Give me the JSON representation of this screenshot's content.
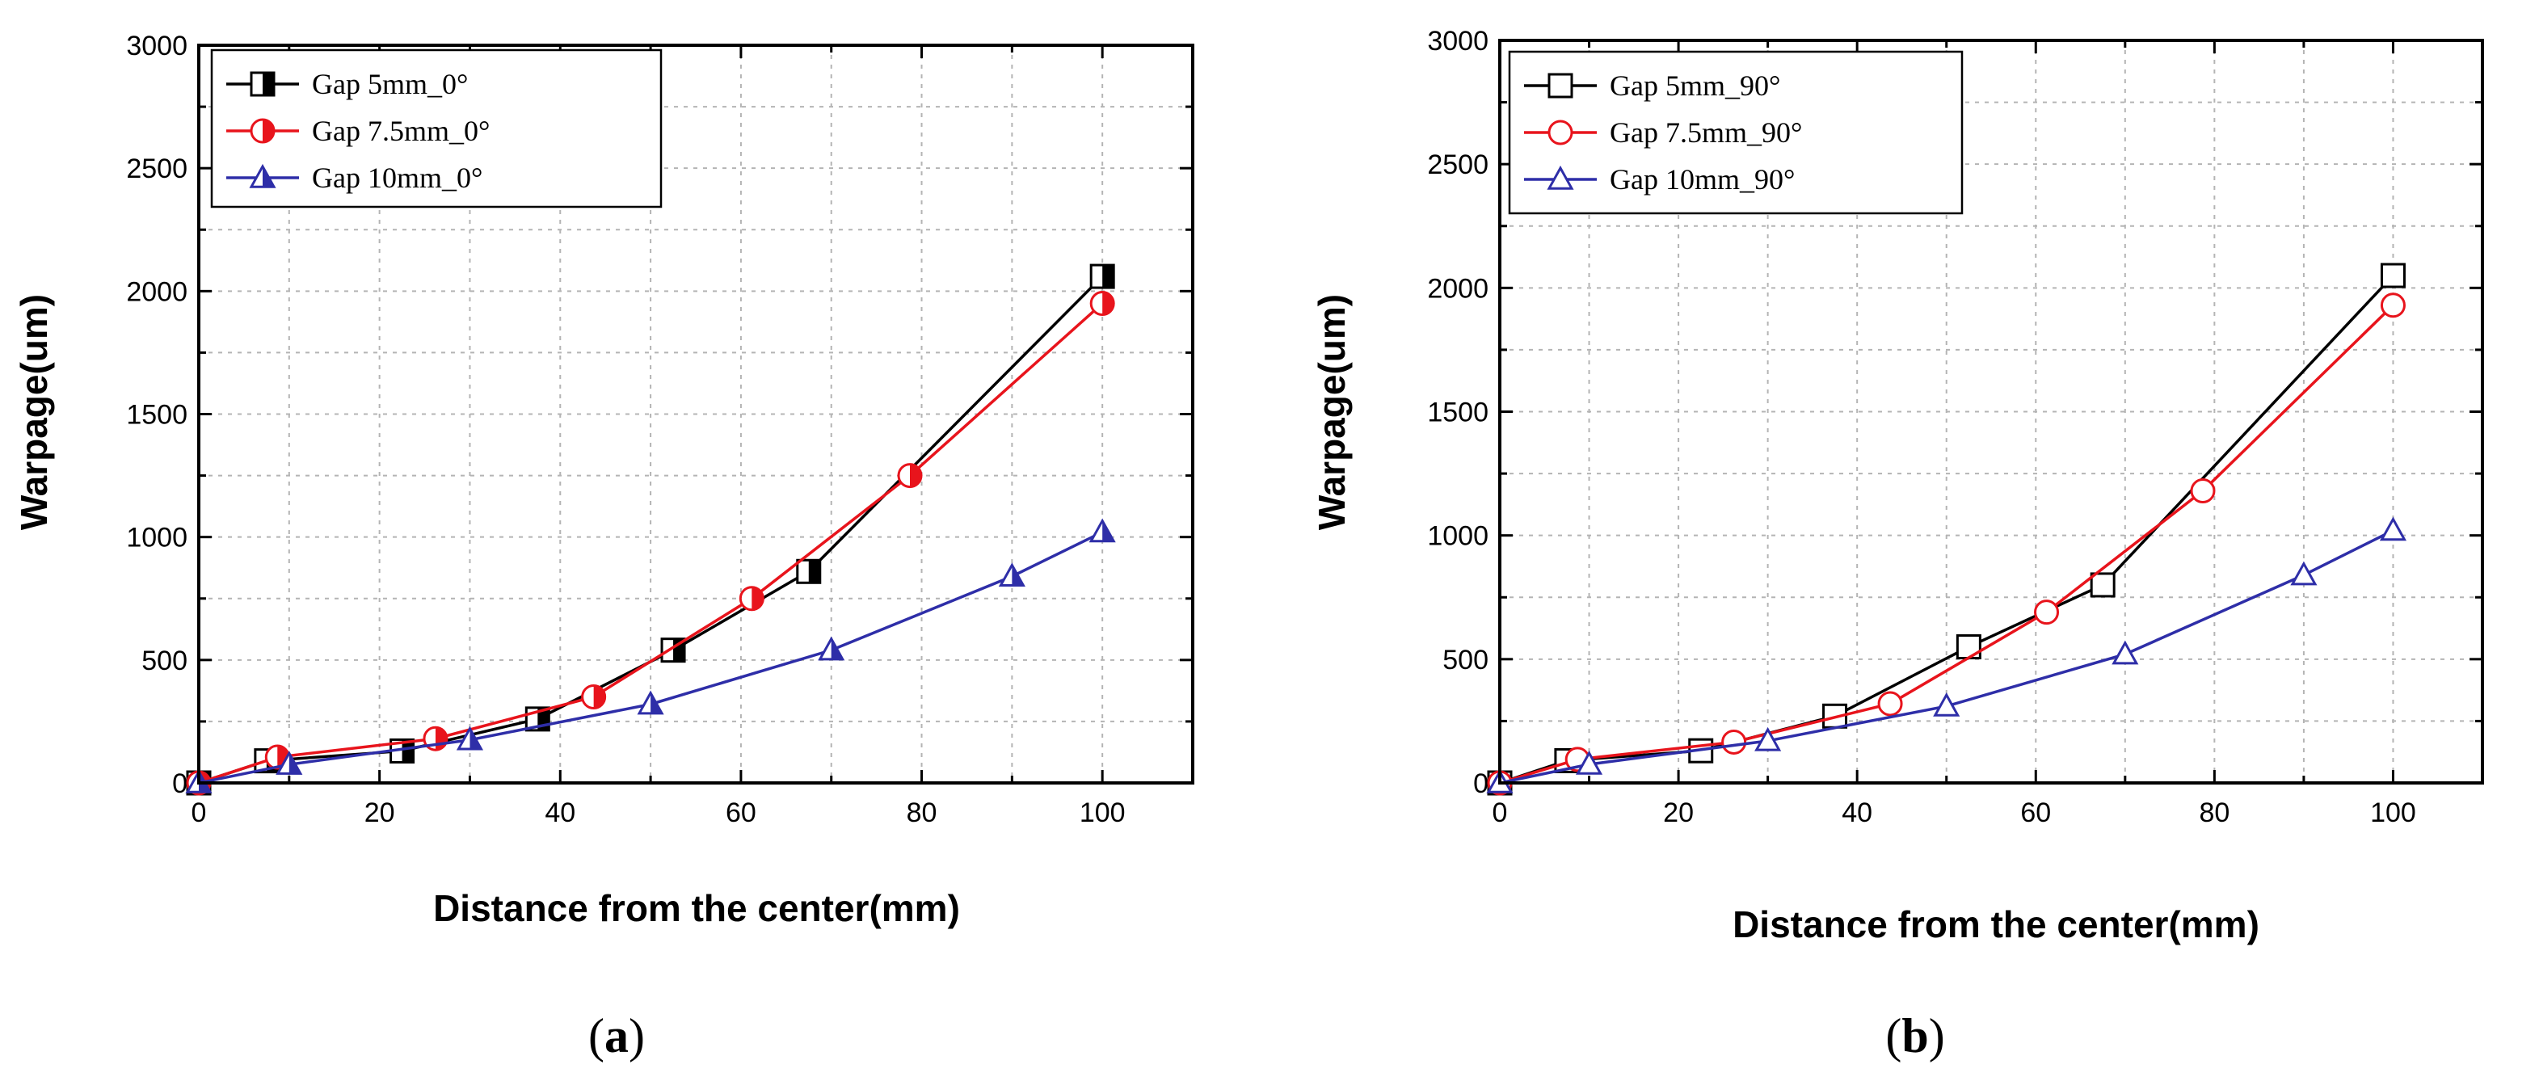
{
  "chart_data": [
    {
      "type": "line",
      "panel": "a",
      "caption_open": "(",
      "caption_letter": "a",
      "caption_close": ")",
      "xlabel": "Distance from the center(mm)",
      "ylabel": "Warpage(um)",
      "xlim": [
        0,
        110
      ],
      "ylim": [
        0,
        3000
      ],
      "xticks": [
        0,
        20,
        40,
        60,
        80,
        100
      ],
      "yticks": [
        0,
        500,
        1000,
        1500,
        2000,
        2500,
        3000
      ],
      "legend_position": "top-left",
      "marker_style": "half-filled",
      "series": [
        {
          "name": "Gap 5mm_0°",
          "color": "#000000",
          "marker": "square",
          "x": [
            0,
            7.5,
            22.5,
            37.5,
            52.5,
            67.5,
            100
          ],
          "y": [
            0,
            90,
            130,
            260,
            540,
            860,
            2060
          ]
        },
        {
          "name": "Gap 7.5mm_0°",
          "color": "#e8141c",
          "marker": "circle",
          "x": [
            0,
            8.7,
            26.2,
            43.7,
            61.2,
            78.7,
            100
          ],
          "y": [
            0,
            105,
            180,
            350,
            750,
            1250,
            1950
          ]
        },
        {
          "name": "Gap 10mm_0°",
          "color": "#2e2ea8",
          "marker": "triangle",
          "x": [
            0,
            10,
            30,
            50,
            70,
            90,
            100
          ],
          "y": [
            0,
            75,
            175,
            320,
            540,
            840,
            1020
          ]
        }
      ]
    },
    {
      "type": "line",
      "panel": "b",
      "caption_open": "(",
      "caption_letter": "b",
      "caption_close": ")",
      "xlabel": "Distance from the center(mm)",
      "ylabel": "Warpage(um)",
      "xlim": [
        0,
        110
      ],
      "ylim": [
        0,
        3000
      ],
      "xticks": [
        0,
        20,
        40,
        60,
        80,
        100
      ],
      "yticks": [
        0,
        500,
        1000,
        1500,
        2000,
        2500,
        3000
      ],
      "legend_position": "top-left",
      "marker_style": "open",
      "series": [
        {
          "name": "Gap 5mm_90°",
          "color": "#000000",
          "marker": "square",
          "x": [
            0,
            7.5,
            22.5,
            37.5,
            52.5,
            67.5,
            100
          ],
          "y": [
            0,
            90,
            130,
            270,
            550,
            800,
            2050
          ]
        },
        {
          "name": "Gap 7.5mm_90°",
          "color": "#e8141c",
          "marker": "circle",
          "x": [
            0,
            8.7,
            26.2,
            43.7,
            61.2,
            78.7,
            100
          ],
          "y": [
            0,
            95,
            165,
            320,
            690,
            1180,
            1930
          ]
        },
        {
          "name": "Gap 10mm_90°",
          "color": "#2e2ea8",
          "marker": "triangle",
          "x": [
            0,
            10,
            30,
            50,
            70,
            90,
            100
          ],
          "y": [
            0,
            75,
            170,
            310,
            520,
            840,
            1020
          ]
        }
      ]
    }
  ]
}
